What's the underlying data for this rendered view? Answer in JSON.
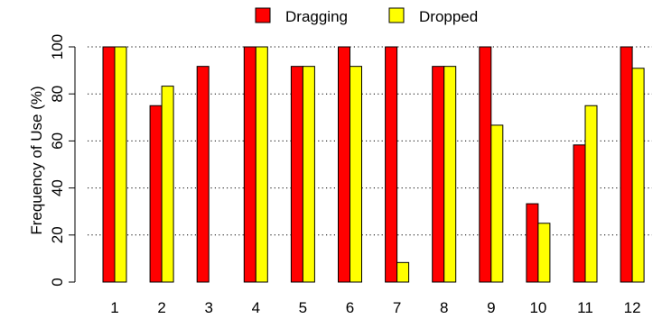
{
  "chart_data": {
    "type": "bar",
    "title": "",
    "xlabel": "",
    "ylabel": "Frequency of Use  (%)",
    "ylim": [
      0,
      100
    ],
    "yticks": [
      0,
      20,
      40,
      60,
      80,
      100
    ],
    "grid": "horizontal dotted",
    "legend_position": "top-center",
    "categories": [
      "1",
      "2",
      "3",
      "4",
      "5",
      "6",
      "7",
      "8",
      "9",
      "10",
      "11",
      "12"
    ],
    "series": [
      {
        "name": "Dragging",
        "color": "#ff0000",
        "values": [
          100,
          75,
          91.7,
          100,
          91.7,
          100,
          100,
          91.7,
          100,
          33.3,
          58.3,
          100
        ]
      },
      {
        "name": "Dropped",
        "color": "#ffff00",
        "values": [
          100,
          83.3,
          0,
          100,
          91.7,
          91.7,
          8.3,
          91.7,
          66.7,
          25,
          75,
          90.9
        ]
      }
    ]
  }
}
